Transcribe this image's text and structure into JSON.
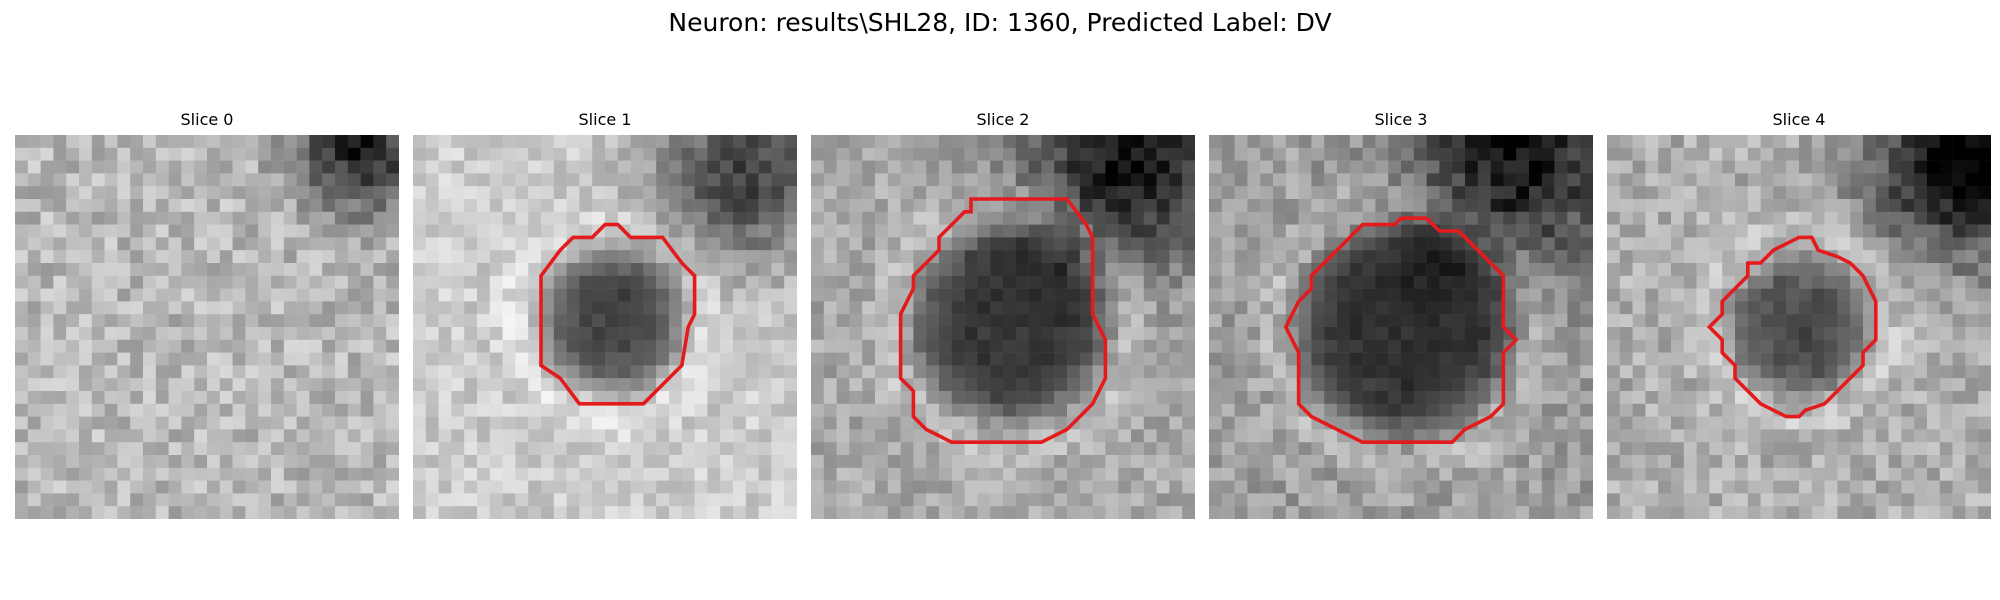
{
  "figure": {
    "title": "Neuron: results\\SHL28, ID: 1360, Predicted Label: DV",
    "contour_color": "#e41a1c",
    "colormap": "gray"
  },
  "panels": [
    {
      "title": "Slice 0",
      "has_contour": false
    },
    {
      "title": "Slice 1",
      "has_contour": true
    },
    {
      "title": "Slice 2",
      "has_contour": true
    },
    {
      "title": "Slice 3",
      "has_contour": true
    },
    {
      "title": "Slice 4",
      "has_contour": true
    }
  ]
}
